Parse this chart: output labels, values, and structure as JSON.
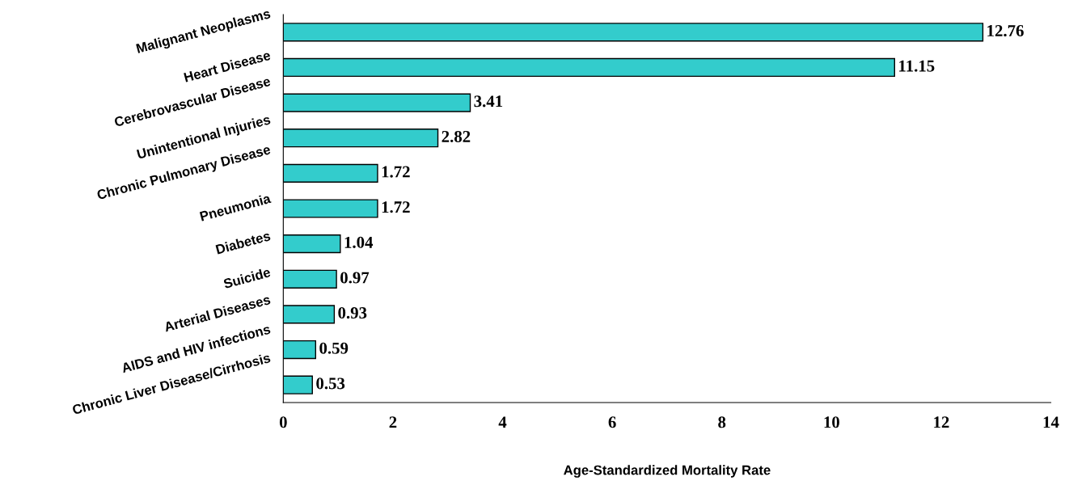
{
  "chart_data": {
    "type": "bar",
    "orientation": "horizontal",
    "xlabel": "Age-Standardized Mortality Rate",
    "categories": [
      "Malignant Neoplasms",
      "Heart Disease",
      "Cerebrovascular Disease",
      "Unintentional Injuries",
      "Chronic Pulmonary Disease",
      "Pneumonia",
      "Diabetes",
      "Suicide",
      "Arterial Diseases",
      "AIDS and HIV infections",
      "Chronic Liver Disease/Cirrhosis"
    ],
    "values": [
      12.76,
      11.15,
      3.41,
      2.82,
      1.72,
      1.72,
      1.04,
      0.97,
      0.93,
      0.59,
      0.53
    ],
    "color": "#33cccc",
    "data_labels": true,
    "xlim": [
      0,
      14
    ],
    "xticks": [
      0,
      2,
      4,
      6,
      8,
      10,
      12,
      14
    ],
    "grid": false
  }
}
